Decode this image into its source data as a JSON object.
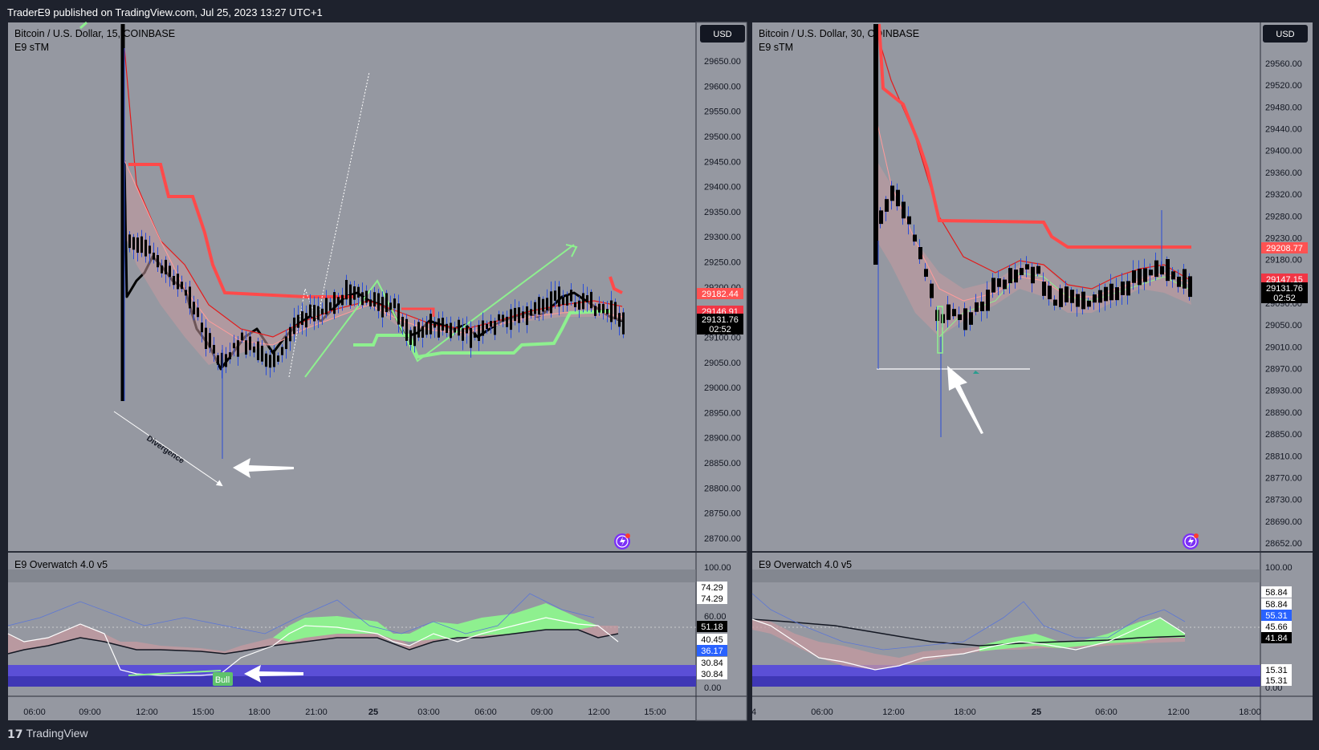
{
  "header": {
    "publisher_text": "TraderE9 published on TradingView.com, Jul 25, 2023 13:27 UTC+1"
  },
  "footer": {
    "brand": "TradingView",
    "logo_icon": "tradingview-logo-icon"
  },
  "colors": {
    "page_bg": "#1e222d",
    "panel_bg": "#9598a1",
    "bull_green": "#8ef08f",
    "bear_red": "#ff4a4a",
    "candle": "#000000",
    "wick_blue": "#2a4dd8",
    "oscillator_band": "#5b4fd6"
  },
  "panels": [
    {
      "id": "left",
      "symbol_title": "Bitcoin / U.S. Dollar, 15, COINBASE",
      "indicator_title": "E9 sTM",
      "currency_button": "USD",
      "oscillator_title": "E9 Overwatch 4.0 v5",
      "price_ticks": [
        "29650.00",
        "29600.00",
        "29550.00",
        "29500.00",
        "29450.00",
        "29400.00",
        "29350.00",
        "29300.00",
        "29250.00",
        "29200.00",
        "29150.00",
        "29100.00",
        "29050.00",
        "29000.00",
        "28950.00",
        "28900.00",
        "28850.00",
        "28800.00",
        "28750.00",
        "28700.00"
      ],
      "price_labels": [
        {
          "text": "29182.44",
          "bg": "#ff5252",
          "fg": "#ffffff"
        },
        {
          "text": "29146.91",
          "bg": "#f23645",
          "fg": "#ffffff"
        },
        {
          "text": "29131.76",
          "bg": "#000000",
          "fg": "#ffffff"
        },
        {
          "text": "02:52",
          "bg": "#000000",
          "fg": "#ffffff"
        }
      ],
      "osc_ticks": [
        "100.00",
        "60.00",
        "0.00"
      ],
      "osc_labels": [
        {
          "text": "74.29",
          "bg": "#ffffff",
          "fg": "#000000"
        },
        {
          "text": "74.29",
          "bg": "#ffffff",
          "fg": "#000000"
        },
        {
          "text": "51.18",
          "bg": "#000000",
          "fg": "#ffffff"
        },
        {
          "text": "40.45",
          "bg": "#ffffff",
          "fg": "#000000"
        },
        {
          "text": "36.17",
          "bg": "#2962ff",
          "fg": "#ffffff"
        },
        {
          "text": "30.84",
          "bg": "#ffffff",
          "fg": "#000000"
        },
        {
          "text": "30.84",
          "bg": "#ffffff",
          "fg": "#000000"
        }
      ],
      "time_ticks": [
        "06:00",
        "09:00",
        "12:00",
        "15:00",
        "18:00",
        "21:00",
        "25",
        "03:00",
        "06:00",
        "09:00",
        "12:00",
        "15:00"
      ],
      "annotations": {
        "divergence": "Divergence",
        "bull": "Bull"
      }
    },
    {
      "id": "right",
      "symbol_title": "Bitcoin / U.S. Dollar, 30, COINBASE",
      "indicator_title": "E9 sTM",
      "currency_button": "USD",
      "oscillator_title": "E9 Overwatch 4.0 v5",
      "price_ticks": [
        "29560.00",
        "29520.00",
        "29480.00",
        "29440.00",
        "29400.00",
        "29360.00",
        "29320.00",
        "29280.00",
        "29230.00",
        "29180.00",
        "29140.00",
        "29090.00",
        "29050.00",
        "29010.00",
        "28970.00",
        "28930.00",
        "28890.00",
        "28850.00",
        "28810.00",
        "28770.00",
        "28730.00",
        "28690.00",
        "28652.00"
      ],
      "price_labels": [
        {
          "text": "29208.77",
          "bg": "#ff5252",
          "fg": "#ffffff"
        },
        {
          "text": "29147.15",
          "bg": "#f23645",
          "fg": "#ffffff"
        },
        {
          "text": "29131.76",
          "bg": "#000000",
          "fg": "#ffffff"
        },
        {
          "text": "02:52",
          "bg": "#000000",
          "fg": "#ffffff"
        }
      ],
      "osc_ticks": [
        "100.00",
        "0.00"
      ],
      "osc_labels": [
        {
          "text": "58.84",
          "bg": "#ffffff",
          "fg": "#000000"
        },
        {
          "text": "58.84",
          "bg": "#ffffff",
          "fg": "#000000"
        },
        {
          "text": "55.31",
          "bg": "#2962ff",
          "fg": "#ffffff"
        },
        {
          "text": "45.66",
          "bg": "#ffffff",
          "fg": "#000000"
        },
        {
          "text": "41.84",
          "bg": "#000000",
          "fg": "#ffffff"
        },
        {
          "text": "15.31",
          "bg": "#ffffff",
          "fg": "#000000"
        },
        {
          "text": "15.31",
          "bg": "#ffffff",
          "fg": "#000000"
        }
      ],
      "time_ticks": [
        "4",
        "06:00",
        "12:00",
        "18:00",
        "25",
        "06:00",
        "12:00",
        "18:00"
      ]
    }
  ],
  "chart_data": [
    {
      "type": "candlestick",
      "title": "Bitcoin / U.S. Dollar, 15, COINBASE",
      "interval": "15",
      "y_axis": "price",
      "ylim": [
        28680,
        29680
      ],
      "x_ticks": [
        "06:00",
        "09:00",
        "12:00",
        "15:00",
        "18:00",
        "21:00",
        "25",
        "03:00",
        "06:00",
        "09:00",
        "12:00",
        "15:00"
      ],
      "last_price": 29131.76,
      "price_levels": {
        "red_stop": 29182.44,
        "red_line": 29146.91,
        "close": 29131.76
      },
      "approx_close_path": [
        {
          "time": "12:00",
          "close": 29200
        },
        {
          "time": "15:00",
          "close": 29060
        },
        {
          "time": "18:00",
          "close": 29050
        },
        {
          "time": "21:00",
          "close": 29140
        },
        {
          "time": "25",
          "close": 29170
        },
        {
          "time": "03:00",
          "close": 29100
        },
        {
          "time": "06:00",
          "close": 29110
        },
        {
          "time": "09:00",
          "close": 29140
        },
        {
          "time": "12:00",
          "close": 29131.76
        }
      ],
      "low_of_period": 28850,
      "oscillator": {
        "name": "E9 Overwatch 4.0 v5",
        "ylim": [
          0,
          100
        ],
        "values_shown": [
          74.29,
          51.18,
          40.45,
          36.17,
          30.84
        ]
      }
    },
    {
      "type": "candlestick",
      "title": "Bitcoin / U.S. Dollar, 30, COINBASE",
      "interval": "30",
      "y_axis": "price",
      "ylim": [
        28640,
        29580
      ],
      "x_ticks": [
        "4",
        "06:00",
        "12:00",
        "18:00",
        "25",
        "06:00",
        "12:00",
        "18:00"
      ],
      "last_price": 29131.76,
      "price_levels": {
        "red_stop": 29208.77,
        "red_line": 29147.15,
        "close": 29131.76,
        "support_line": 28975
      },
      "approx_close_path": [
        {
          "time": "12:00",
          "close": 29300
        },
        {
          "time": "18:00",
          "close": 29040
        },
        {
          "time": "25",
          "close": 29180
        },
        {
          "time": "06:00",
          "close": 29080
        },
        {
          "time": "12:00",
          "close": 29131.76
        }
      ],
      "low_of_period": 28870,
      "oscillator": {
        "name": "E9 Overwatch 4.0 v5",
        "ylim": [
          0,
          100
        ],
        "values_shown": [
          58.84,
          55.31,
          45.66,
          41.84,
          15.31
        ]
      }
    }
  ]
}
